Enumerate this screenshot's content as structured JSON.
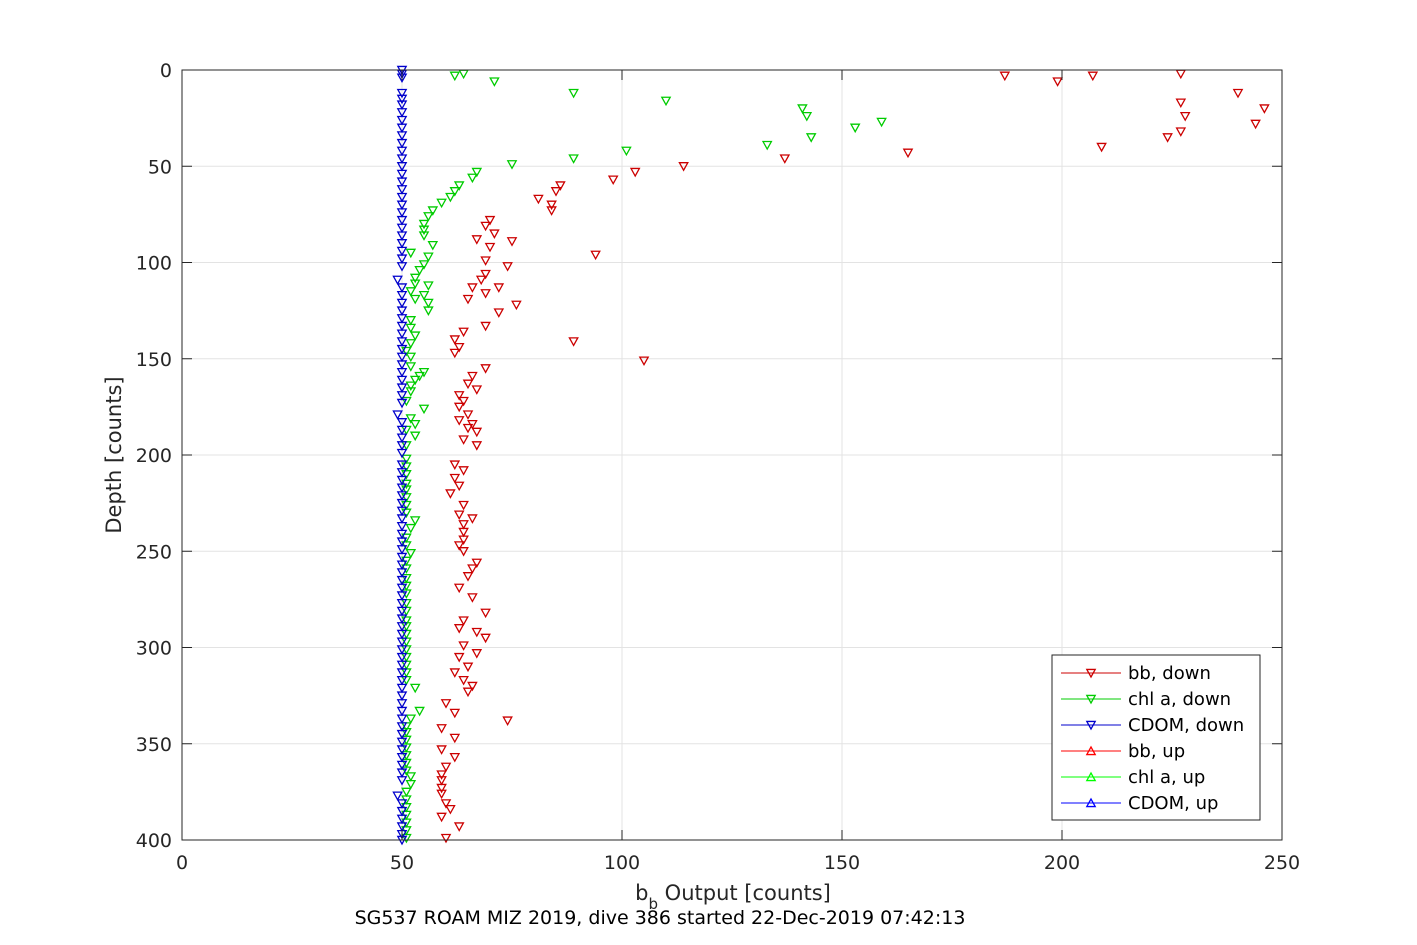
{
  "chart_data": {
    "type": "scatter",
    "title": "",
    "xlabel_main": "b",
    "xlabel_sub": "b",
    "xlabel_rest": " Output [counts]",
    "ylabel": "Depth [counts]",
    "caption": "SG537 ROAM MIZ 2019, dive 386 started 22-Dec-2019 07:42:13",
    "xlim": [
      0,
      250
    ],
    "ylim": [
      0,
      400
    ],
    "y_reversed": true,
    "grid": true,
    "legend_position": "bottom-right",
    "xticks": [
      "0",
      "50",
      "100",
      "150",
      "200",
      "250"
    ],
    "yticks": [
      "0",
      "50",
      "100",
      "150",
      "200",
      "250",
      "300",
      "350",
      "400"
    ],
    "series": [
      {
        "name": "bb, down",
        "color": "#cc0000",
        "marker": "triangle-down",
        "points": [
          [
            187,
            3
          ],
          [
            199,
            6
          ],
          [
            207,
            3
          ],
          [
            227,
            2
          ],
          [
            240,
            12
          ],
          [
            227,
            17
          ],
          [
            246,
            20
          ],
          [
            228,
            24
          ],
          [
            244,
            28
          ],
          [
            227,
            32
          ],
          [
            224,
            35
          ],
          [
            209,
            40
          ],
          [
            165,
            43
          ],
          [
            137,
            46
          ],
          [
            114,
            50
          ],
          [
            103,
            53
          ],
          [
            98,
            57
          ],
          [
            86,
            60
          ],
          [
            85,
            63
          ],
          [
            81,
            67
          ],
          [
            84,
            70
          ],
          [
            84,
            73
          ],
          [
            70,
            78
          ],
          [
            69,
            81
          ],
          [
            71,
            85
          ],
          [
            67,
            88
          ],
          [
            75,
            89
          ],
          [
            70,
            92
          ],
          [
            94,
            96
          ],
          [
            69,
            99
          ],
          [
            74,
            102
          ],
          [
            69,
            106
          ],
          [
            68,
            109
          ],
          [
            66,
            113
          ],
          [
            72,
            113
          ],
          [
            69,
            116
          ],
          [
            65,
            119
          ],
          [
            76,
            122
          ],
          [
            72,
            126
          ],
          [
            69,
            133
          ],
          [
            64,
            136
          ],
          [
            62,
            140
          ],
          [
            89,
            141
          ],
          [
            63,
            144
          ],
          [
            62,
            147
          ],
          [
            105,
            151
          ],
          [
            69,
            155
          ],
          [
            66,
            159
          ],
          [
            65,
            163
          ],
          [
            67,
            166
          ],
          [
            63,
            169
          ],
          [
            64,
            172
          ],
          [
            63,
            175
          ],
          [
            65,
            179
          ],
          [
            63,
            182
          ],
          [
            66,
            184
          ],
          [
            65,
            186
          ],
          [
            67,
            188
          ],
          [
            64,
            192
          ],
          [
            67,
            195
          ],
          [
            62,
            205
          ],
          [
            64,
            208
          ],
          [
            62,
            212
          ],
          [
            63,
            216
          ],
          [
            61,
            220
          ],
          [
            64,
            226
          ],
          [
            63,
            231
          ],
          [
            66,
            233
          ],
          [
            64,
            236
          ],
          [
            64,
            240
          ],
          [
            64,
            244
          ],
          [
            63,
            247
          ],
          [
            64,
            250
          ],
          [
            67,
            256
          ],
          [
            66,
            259
          ],
          [
            65,
            263
          ],
          [
            63,
            269
          ],
          [
            66,
            274
          ],
          [
            69,
            282
          ],
          [
            64,
            286
          ],
          [
            63,
            290
          ],
          [
            67,
            292
          ],
          [
            69,
            295
          ],
          [
            64,
            299
          ],
          [
            67,
            303
          ],
          [
            63,
            305
          ],
          [
            65,
            310
          ],
          [
            62,
            313
          ],
          [
            64,
            317
          ],
          [
            66,
            320
          ],
          [
            65,
            323
          ],
          [
            60,
            329
          ],
          [
            62,
            334
          ],
          [
            74,
            338
          ],
          [
            59,
            342
          ],
          [
            62,
            347
          ],
          [
            59,
            353
          ],
          [
            62,
            357
          ],
          [
            60,
            362
          ],
          [
            59,
            366
          ],
          [
            59,
            369
          ],
          [
            59,
            373
          ],
          [
            59,
            376
          ],
          [
            60,
            381
          ],
          [
            61,
            384
          ],
          [
            59,
            388
          ],
          [
            63,
            393
          ],
          [
            60,
            399
          ]
        ]
      },
      {
        "name": "chl a, down",
        "color": "#00cc00",
        "marker": "triangle-down",
        "points": [
          [
            64,
            2
          ],
          [
            62,
            3
          ],
          [
            71,
            6
          ],
          [
            89,
            12
          ],
          [
            110,
            16
          ],
          [
            141,
            20
          ],
          [
            142,
            24
          ],
          [
            159,
            27
          ],
          [
            153,
            30
          ],
          [
            143,
            35
          ],
          [
            133,
            39
          ],
          [
            101,
            42
          ],
          [
            89,
            46
          ],
          [
            75,
            49
          ],
          [
            67,
            53
          ],
          [
            66,
            56
          ],
          [
            63,
            60
          ],
          [
            62,
            63
          ],
          [
            61,
            66
          ],
          [
            59,
            69
          ],
          [
            57,
            73
          ],
          [
            56,
            76
          ],
          [
            55,
            80
          ],
          [
            55,
            83
          ],
          [
            55,
            86
          ],
          [
            57,
            91
          ],
          [
            52,
            95
          ],
          [
            56,
            97
          ],
          [
            55,
            101
          ],
          [
            54,
            104
          ],
          [
            53,
            108
          ],
          [
            53,
            111
          ],
          [
            56,
            112
          ],
          [
            52,
            115
          ],
          [
            55,
            117
          ],
          [
            53,
            119
          ],
          [
            56,
            121
          ],
          [
            56,
            125
          ],
          [
            52,
            130
          ],
          [
            52,
            134
          ],
          [
            53,
            138
          ],
          [
            52,
            142
          ],
          [
            51,
            146
          ],
          [
            52,
            149
          ],
          [
            52,
            154
          ],
          [
            55,
            157
          ],
          [
            54,
            159
          ],
          [
            53,
            161
          ],
          [
            52,
            164
          ],
          [
            52,
            167
          ],
          [
            51,
            172
          ],
          [
            55,
            176
          ],
          [
            52,
            181
          ],
          [
            53,
            184
          ],
          [
            51,
            187
          ],
          [
            53,
            190
          ],
          [
            51,
            195
          ],
          [
            51,
            202
          ],
          [
            51,
            206
          ],
          [
            51,
            210
          ],
          [
            51,
            215
          ],
          [
            51,
            218
          ],
          [
            51,
            222
          ],
          [
            51,
            226
          ],
          [
            51,
            230
          ],
          [
            53,
            234
          ],
          [
            52,
            238
          ],
          [
            51,
            243
          ],
          [
            51,
            247
          ],
          [
            52,
            251
          ],
          [
            51,
            255
          ],
          [
            51,
            259
          ],
          [
            51,
            264
          ],
          [
            51,
            268
          ],
          [
            51,
            272
          ],
          [
            51,
            277
          ],
          [
            51,
            281
          ],
          [
            51,
            286
          ],
          [
            51,
            289
          ],
          [
            51,
            293
          ],
          [
            51,
            297
          ],
          [
            51,
            301
          ],
          [
            51,
            305
          ],
          [
            51,
            309
          ],
          [
            51,
            313
          ],
          [
            51,
            317
          ],
          [
            53,
            321
          ],
          [
            54,
            333
          ],
          [
            52,
            337
          ],
          [
            51,
            341
          ],
          [
            51,
            344
          ],
          [
            51,
            348
          ],
          [
            51,
            352
          ],
          [
            51,
            356
          ],
          [
            51,
            360
          ],
          [
            51,
            364
          ],
          [
            52,
            367
          ],
          [
            52,
            371
          ],
          [
            51,
            375
          ],
          [
            51,
            379
          ],
          [
            51,
            383
          ],
          [
            51,
            387
          ],
          [
            51,
            391
          ],
          [
            51,
            395
          ],
          [
            51,
            399
          ]
        ]
      },
      {
        "name": "CDOM, down",
        "color": "#0000cc",
        "marker": "triangle-down",
        "points": [
          [
            50,
            0
          ],
          [
            50,
            2
          ],
          [
            50,
            4
          ],
          [
            50,
            12
          ],
          [
            50,
            15
          ],
          [
            50,
            18
          ],
          [
            50,
            22
          ],
          [
            50,
            26
          ],
          [
            50,
            30
          ],
          [
            50,
            34
          ],
          [
            50,
            38
          ],
          [
            50,
            42
          ],
          [
            50,
            46
          ],
          [
            50,
            50
          ],
          [
            50,
            54
          ],
          [
            50,
            58
          ],
          [
            50,
            62
          ],
          [
            50,
            66
          ],
          [
            50,
            70
          ],
          [
            50,
            74
          ],
          [
            50,
            78
          ],
          [
            50,
            82
          ],
          [
            50,
            86
          ],
          [
            50,
            90
          ],
          [
            50,
            94
          ],
          [
            50,
            98
          ],
          [
            50,
            102
          ],
          [
            49,
            109
          ],
          [
            50,
            113
          ],
          [
            50,
            117
          ],
          [
            50,
            121
          ],
          [
            50,
            125
          ],
          [
            50,
            129
          ],
          [
            50,
            133
          ],
          [
            50,
            137
          ],
          [
            50,
            141
          ],
          [
            50,
            145
          ],
          [
            50,
            149
          ],
          [
            50,
            153
          ],
          [
            50,
            157
          ],
          [
            50,
            161
          ],
          [
            50,
            165
          ],
          [
            50,
            169
          ],
          [
            50,
            173
          ],
          [
            49,
            179
          ],
          [
            50,
            183
          ],
          [
            50,
            187
          ],
          [
            50,
            191
          ],
          [
            50,
            195
          ],
          [
            50,
            199
          ],
          [
            50,
            205
          ],
          [
            50,
            209
          ],
          [
            50,
            213
          ],
          [
            50,
            217
          ],
          [
            50,
            221
          ],
          [
            50,
            225
          ],
          [
            50,
            229
          ],
          [
            50,
            233
          ],
          [
            50,
            237
          ],
          [
            50,
            241
          ],
          [
            50,
            245
          ],
          [
            50,
            249
          ],
          [
            50,
            253
          ],
          [
            50,
            257
          ],
          [
            50,
            261
          ],
          [
            50,
            265
          ],
          [
            50,
            269
          ],
          [
            50,
            273
          ],
          [
            50,
            277
          ],
          [
            50,
            281
          ],
          [
            50,
            285
          ],
          [
            50,
            289
          ],
          [
            50,
            293
          ],
          [
            50,
            297
          ],
          [
            50,
            301
          ],
          [
            50,
            305
          ],
          [
            50,
            309
          ],
          [
            50,
            313
          ],
          [
            50,
            317
          ],
          [
            50,
            321
          ],
          [
            50,
            325
          ],
          [
            50,
            329
          ],
          [
            50,
            333
          ],
          [
            50,
            337
          ],
          [
            50,
            341
          ],
          [
            50,
            345
          ],
          [
            50,
            349
          ],
          [
            50,
            353
          ],
          [
            50,
            357
          ],
          [
            50,
            361
          ],
          [
            50,
            365
          ],
          [
            50,
            369
          ],
          [
            49,
            377
          ],
          [
            50,
            381
          ],
          [
            50,
            385
          ],
          [
            50,
            389
          ],
          [
            50,
            393
          ],
          [
            50,
            397
          ],
          [
            50,
            400
          ]
        ]
      },
      {
        "name": "bb, up",
        "color": "#ff0000",
        "marker": "triangle-up",
        "points": []
      },
      {
        "name": "chl a, up",
        "color": "#00ff00",
        "marker": "triangle-up",
        "points": []
      },
      {
        "name": "CDOM, up",
        "color": "#0000ff",
        "marker": "triangle-up",
        "points": []
      }
    ]
  }
}
